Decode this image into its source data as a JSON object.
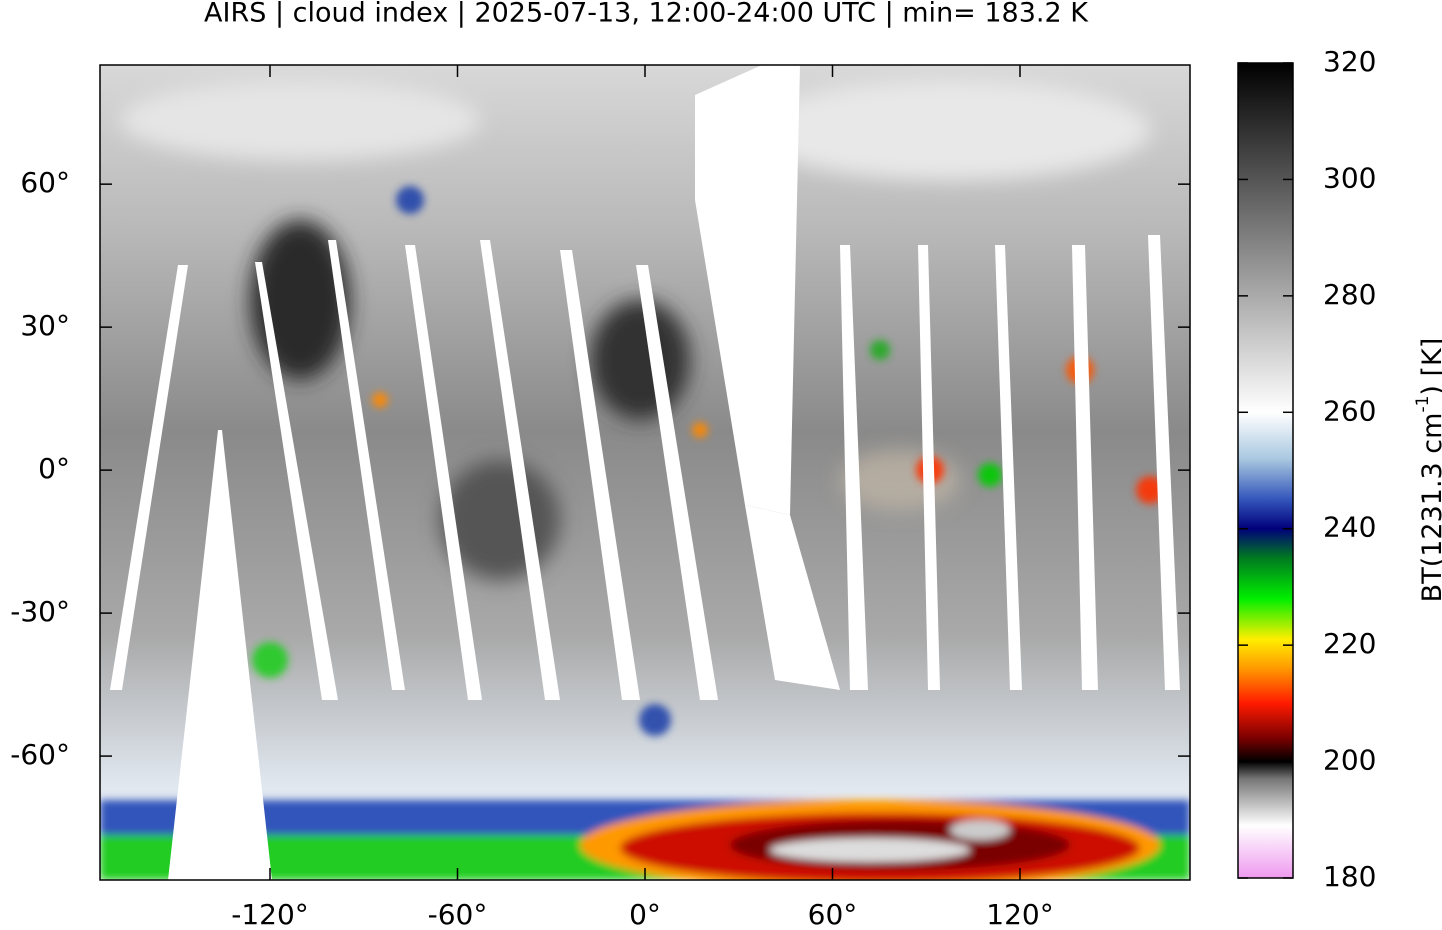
{
  "chart_data": {
    "type": "map",
    "title": "AIRS | cloud index | 2025-07-13, 12:00-24:00 UTC | min= 183.2 K",
    "xlim": [
      -174.4,
      174.4
    ],
    "ylim": [
      -86,
      85
    ],
    "xticks": [
      {
        "value": -120,
        "label": "-120°"
      },
      {
        "value": -60,
        "label": "-60°"
      },
      {
        "value": 0,
        "label": "0°"
      },
      {
        "value": 60,
        "label": "60°"
      },
      {
        "value": 120,
        "label": "120°"
      }
    ],
    "yticks": [
      {
        "value": 60,
        "label": "60°"
      },
      {
        "value": 30,
        "label": "30°"
      },
      {
        "value": 0,
        "label": "0°"
      },
      {
        "value": -30,
        "label": "-30°"
      },
      {
        "value": -60,
        "label": "-60°"
      }
    ],
    "colorbar": {
      "label": "BT(1231.3 cm",
      "label_superscript": "-1",
      "label_suffix": ") [K]",
      "lim": [
        180,
        320
      ],
      "ticks": [
        180,
        200,
        220,
        240,
        260,
        280,
        300,
        320
      ],
      "colormap": [
        {
          "value": 180,
          "color": "#ee99ee"
        },
        {
          "value": 189,
          "color": "#ffffff"
        },
        {
          "value": 197,
          "color": "#777777"
        },
        {
          "value": 200,
          "color": "#000000"
        },
        {
          "value": 204,
          "color": "#7a0000"
        },
        {
          "value": 210,
          "color": "#ff1a00"
        },
        {
          "value": 216,
          "color": "#ff9900"
        },
        {
          "value": 221,
          "color": "#ffee00"
        },
        {
          "value": 228,
          "color": "#00ee00"
        },
        {
          "value": 235,
          "color": "#007a20"
        },
        {
          "value": 240,
          "color": "#00007a"
        },
        {
          "value": 245,
          "color": "#3355bb"
        },
        {
          "value": 252,
          "color": "#a9c8e0"
        },
        {
          "value": 260,
          "color": "#ffffff"
        },
        {
          "value": 320,
          "color": "#000000"
        }
      ]
    }
  }
}
